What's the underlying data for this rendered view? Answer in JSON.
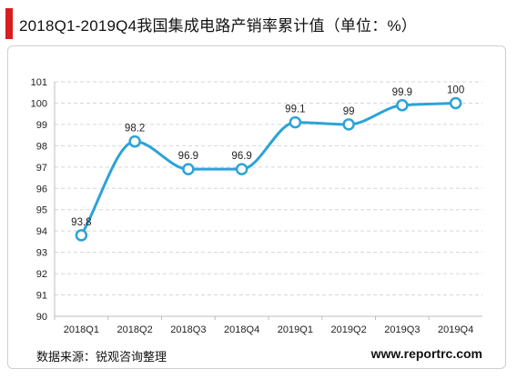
{
  "header": {
    "title": "2018Q1-2019Q4我国集成电路产销率累计值（单位：%）",
    "accent_color": "#d81e1e"
  },
  "footer": {
    "source": "数据来源：锐观咨询整理",
    "website": "www.reportrc.com"
  },
  "chart_data": {
    "type": "line",
    "title": "2018Q1-2019Q4我国集成电路产销率累计值（单位：%）",
    "xlabel": "",
    "ylabel": "",
    "categories": [
      "2018Q1",
      "2018Q2",
      "2018Q3",
      "2018Q4",
      "2019Q1",
      "2019Q2",
      "2019Q3",
      "2019Q4"
    ],
    "series": [
      {
        "values": [
          93.8,
          98.2,
          96.9,
          96.9,
          99.1,
          99,
          99.9,
          100
        ],
        "labels": [
          "93.8",
          "98.2",
          "96.9",
          "96.9",
          "99.1",
          "99",
          "99.9",
          "100"
        ],
        "color": "#2ba3d8",
        "smooth": true,
        "marker": "hollow-circle"
      }
    ],
    "ylim": [
      90,
      101
    ],
    "yticks": [
      90,
      91,
      92,
      93,
      94,
      95,
      96,
      97,
      98,
      99,
      100,
      101
    ],
    "grid": "horizontal-dashed",
    "legend": "none"
  }
}
